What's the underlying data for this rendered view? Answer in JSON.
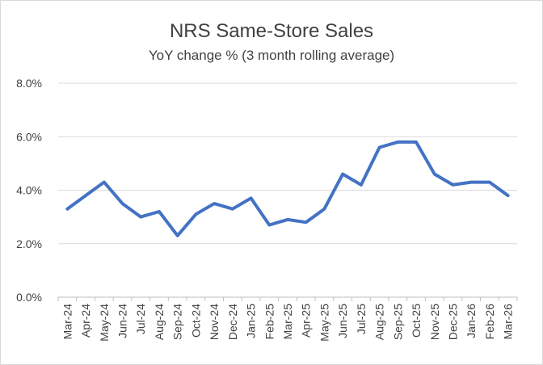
{
  "chart_data": {
    "type": "line",
    "title": "NRS Same-Store Sales",
    "subtitle": "YoY change % (3 month rolling average)",
    "xlabel": "",
    "ylabel": "",
    "categories": [
      "Mar-24",
      "Apr-24",
      "May-24",
      "Jun-24",
      "Jul-24",
      "Aug-24",
      "Sep-24",
      "Oct-24",
      "Nov-24",
      "Dec-24",
      "Jan-25",
      "Feb-25",
      "Mar-25",
      "Apr-25",
      "May-25",
      "Jun-25",
      "Jul-25",
      "Aug-25",
      "Sep-25",
      "Oct-25",
      "Nov-25",
      "Dec-25",
      "Jan-26",
      "Feb-26",
      "Mar-26"
    ],
    "series": [
      {
        "values": [
          3.3,
          3.8,
          4.3,
          3.5,
          3.0,
          3.2,
          2.3,
          3.1,
          3.5,
          3.3,
          3.7,
          2.7,
          2.9,
          2.8,
          3.3,
          4.6,
          4.2,
          5.6,
          5.8,
          5.8,
          4.6,
          4.2,
          4.3,
          4.3,
          3.8
        ],
        "color": "#4472c4"
      }
    ],
    "ylim": [
      0,
      8
    ],
    "yticks": [
      "0.0%",
      "2.0%",
      "4.0%",
      "6.0%",
      "8.0%"
    ],
    "grid": true,
    "legend": "none",
    "colors": {
      "line": "#4472c4",
      "grid": "#d9d9d9",
      "text": "#404040"
    }
  }
}
